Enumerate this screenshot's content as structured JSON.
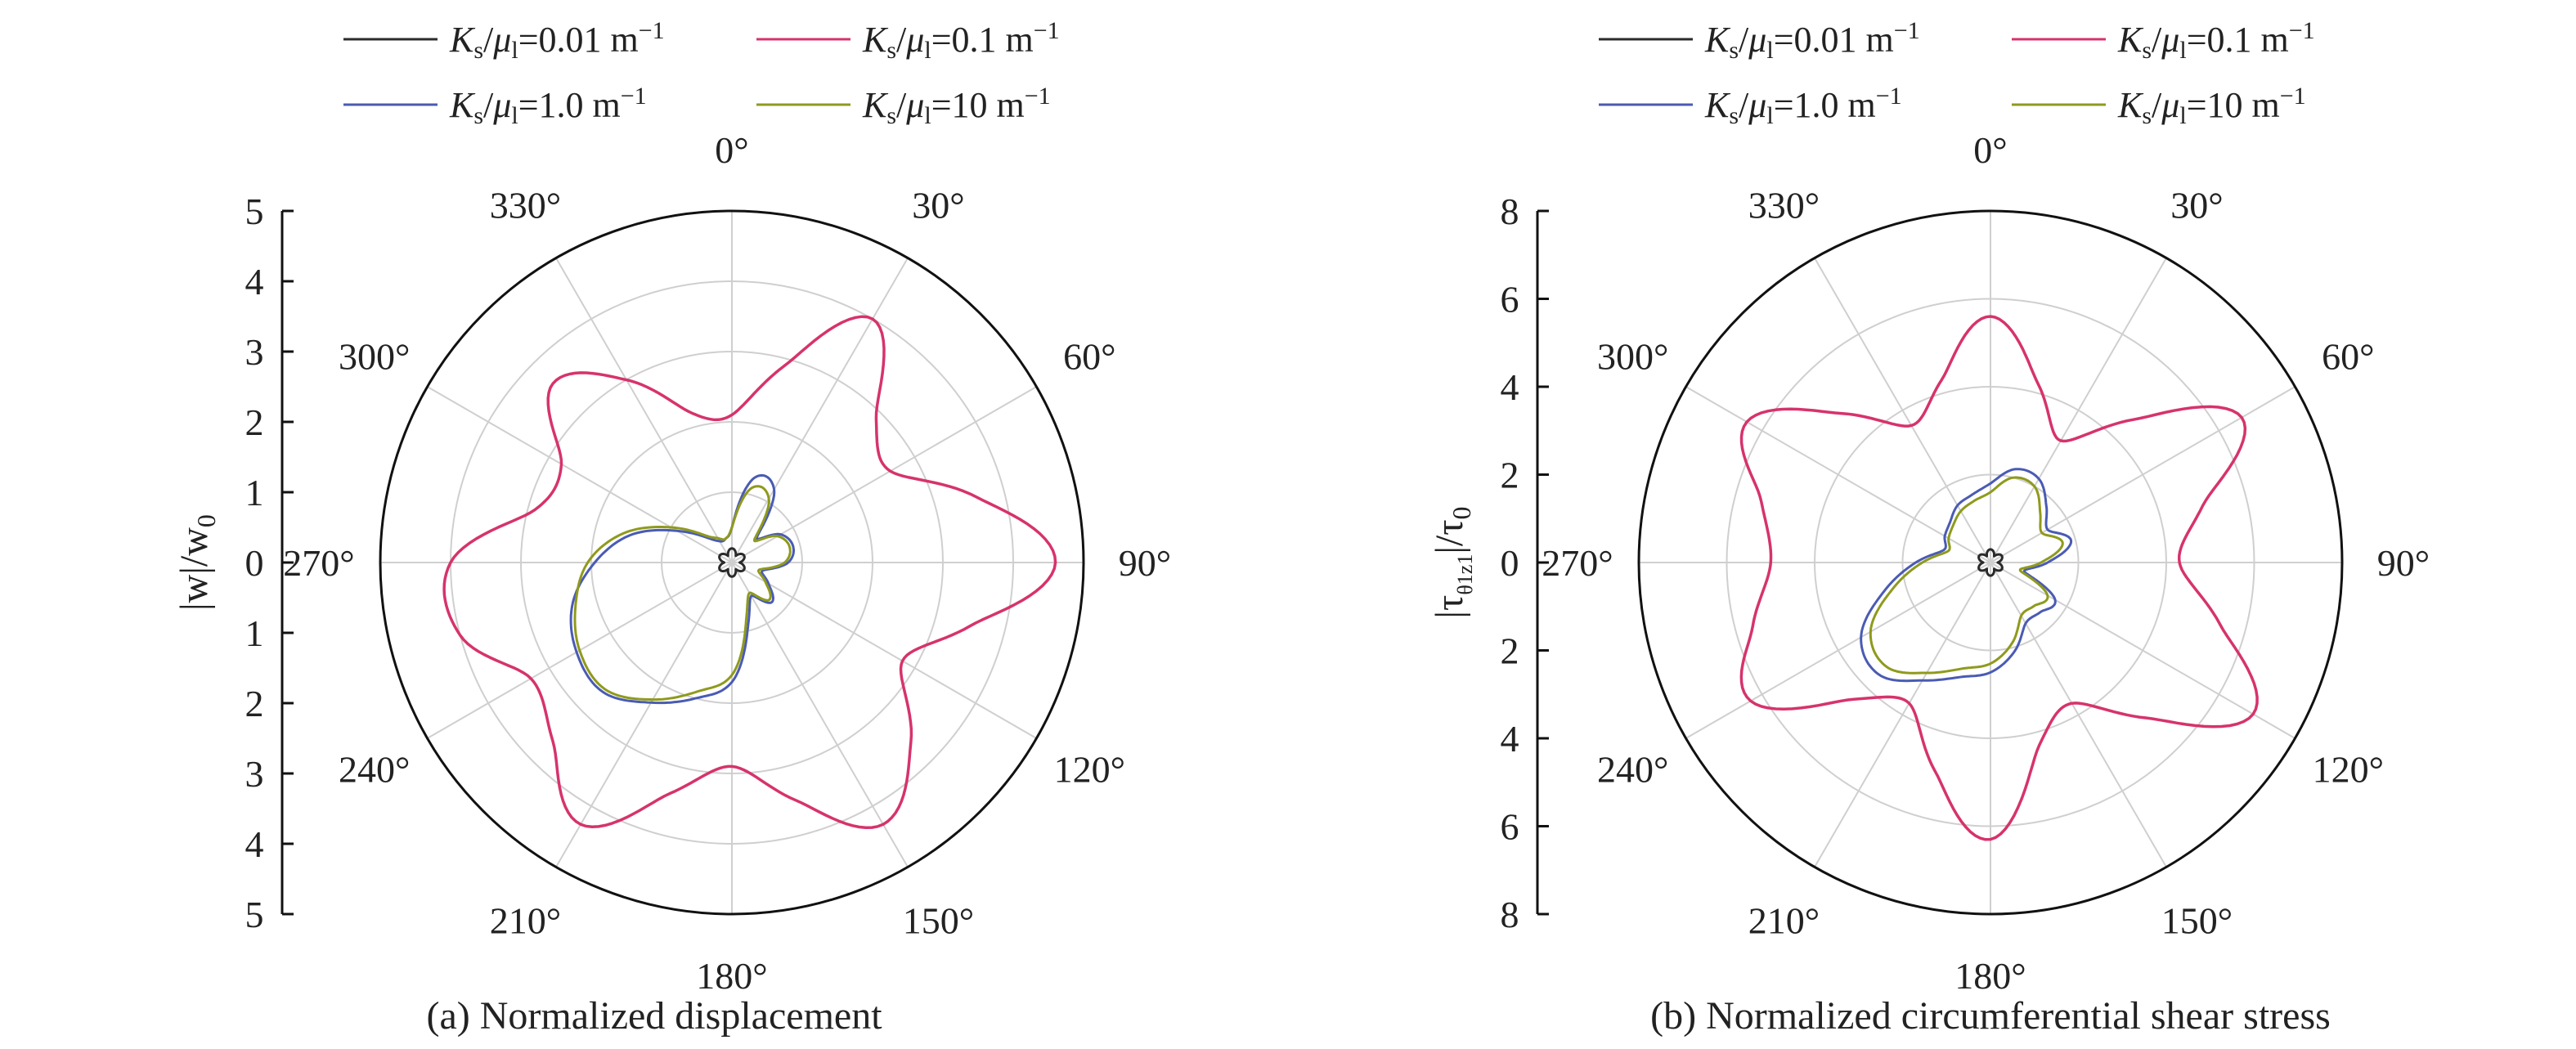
{
  "figure": {
    "legend": {
      "entries": [
        {
          "sym": "K",
          "sub1": "s",
          "mid": "/",
          "sym2": "μ",
          "sub2": "l",
          "eq": "=0.01 m",
          "sup": "−1",
          "color": "#2b2b2b"
        },
        {
          "sym": "K",
          "sub1": "s",
          "mid": "/",
          "sym2": "μ",
          "sub2": "l",
          "eq": "=0.1 m",
          "sup": "−1",
          "color": "#d6336c"
        },
        {
          "sym": "K",
          "sub1": "s",
          "mid": "/",
          "sym2": "μ",
          "sub2": "l",
          "eq": "=1.0 m",
          "sup": "−1",
          "color": "#4a5bb3"
        },
        {
          "sym": "K",
          "sub1": "s",
          "mid": "/",
          "sym2": "μ",
          "sub2": "l",
          "eq": "=10 m",
          "sup": "−1",
          "color": "#8f9a1c"
        }
      ]
    },
    "angle_labels": [
      "0°",
      "30°",
      "60°",
      "90°",
      "120°",
      "150°",
      "180°",
      "210°",
      "240°",
      "270°",
      "300°",
      "330°"
    ]
  },
  "chart_data": [
    {
      "type": "polar-line",
      "caption": "(a) Normalized displacement",
      "ylabel": "|w|/w",
      "ylabel_sub": "0",
      "rlim": [
        0,
        5
      ],
      "radial_ticks": [
        5,
        4,
        3,
        2,
        1,
        0,
        1,
        2,
        3,
        4,
        5
      ],
      "grid": true,
      "legend_position": "top",
      "series": [
        {
          "name": "Ks/μl=0.01 m−1",
          "color": "#2b2b2b",
          "n": 6,
          "theta": [
            0,
            30,
            60,
            90,
            120,
            150,
            180,
            210,
            240,
            270,
            300,
            330
          ],
          "r": [
            0.2,
            0.2,
            0.2,
            0.2,
            0.2,
            0.2,
            0.2,
            0.2,
            0.2,
            0.2,
            0.2,
            0.2
          ]
        },
        {
          "name": "Ks/μl=0.1 m−1",
          "color": "#d6336c",
          "theta": [
            0,
            15,
            30,
            45,
            60,
            75,
            90,
            105,
            120,
            135,
            150,
            165,
            180,
            195,
            210,
            225,
            240,
            255,
            270,
            285,
            300,
            315,
            330,
            345
          ],
          "r": [
            2.1,
            2.9,
            4.0,
            2.9,
            2.6,
            3.6,
            4.6,
            3.5,
            2.8,
            3.6,
            4.3,
            3.5,
            2.9,
            3.4,
            4.3,
            3.6,
            3.3,
            4.0,
            4.0,
            2.9,
            2.8,
            3.6,
            3.0,
            2.2
          ]
        },
        {
          "name": "Ks/μl=1.0 m−1",
          "color": "#4a5bb3",
          "theta": [
            0,
            15,
            30,
            45,
            60,
            75,
            90,
            105,
            120,
            135,
            150,
            165,
            180,
            195,
            210,
            225,
            240,
            255,
            270,
            285,
            300,
            315,
            330,
            345
          ],
          "r": [
            0.5,
            1.25,
            1.2,
            0.5,
            0.8,
            0.9,
            0.8,
            0.45,
            0.6,
            0.8,
            0.55,
            0.9,
            1.7,
            2.0,
            2.3,
            2.6,
            2.55,
            2.35,
            1.95,
            1.5,
            0.9,
            0.5,
            0.35,
            0.35
          ]
        },
        {
          "name": "Ks/μl=10 m−1",
          "color": "#8f9a1c",
          "theta": [
            0,
            15,
            30,
            45,
            60,
            75,
            90,
            105,
            120,
            135,
            150,
            165,
            180,
            195,
            210,
            225,
            240,
            255,
            270,
            285,
            300,
            315,
            330,
            345
          ],
          "r": [
            0.5,
            1.1,
            1.05,
            0.45,
            0.75,
            0.85,
            0.75,
            0.4,
            0.55,
            0.75,
            0.5,
            0.8,
            1.6,
            1.9,
            2.25,
            2.55,
            2.5,
            2.3,
            2.05,
            1.6,
            1.0,
            0.55,
            0.4,
            0.35
          ]
        }
      ]
    },
    {
      "type": "polar-line",
      "caption": "(b) Normalized circumferential shear stress",
      "ylabel": "|τ",
      "ylabel_sub": "θ1z1",
      "ylabel_tail": "|/τ",
      "ylabel_sub2": "0",
      "rlim": [
        0,
        8
      ],
      "radial_ticks": [
        8,
        6,
        4,
        2,
        0,
        2,
        4,
        6,
        8
      ],
      "grid": true,
      "legend_position": "top",
      "series": [
        {
          "name": "Ks/μl=0.01 m−1",
          "color": "#2b2b2b",
          "n": 6,
          "theta": [
            0,
            30,
            60,
            90,
            120,
            150,
            180,
            210,
            240,
            270,
            300,
            330
          ],
          "r": [
            0.3,
            0.3,
            0.3,
            0.3,
            0.3,
            0.3,
            0.3,
            0.3,
            0.3,
            0.3,
            0.3,
            0.3
          ]
        },
        {
          "name": "Ks/μl=0.1 m−1",
          "color": "#d6336c",
          "theta": [
            0,
            15,
            30,
            45,
            60,
            75,
            90,
            105,
            120,
            135,
            150,
            165,
            180,
            195,
            210,
            225,
            240,
            255,
            270,
            285,
            300,
            315,
            330,
            345
          ],
          "r": [
            5.6,
            4.2,
            3.2,
            4.6,
            6.6,
            5.0,
            4.3,
            5.4,
            6.9,
            5.0,
            3.7,
            4.3,
            6.3,
            4.9,
            3.7,
            4.4,
            6.3,
            5.6,
            5.0,
            5.4,
            6.4,
            4.8,
            3.6,
            4.3
          ]
        },
        {
          "name": "Ks/μl=1.0 m−1",
          "color": "#4a5bb3",
          "theta": [
            0,
            15,
            30,
            45,
            60,
            75,
            90,
            105,
            120,
            135,
            150,
            165,
            180,
            195,
            210,
            225,
            240,
            255,
            270,
            285,
            300,
            315,
            330,
            345
          ],
          "r": [
            1.8,
            2.2,
            2.2,
            1.8,
            1.5,
            1.9,
            1.3,
            0.8,
            1.7,
            1.6,
            1.6,
            2.1,
            2.5,
            2.7,
            3.1,
            3.6,
            3.4,
            2.5,
            1.7,
            1.1,
            1.2,
            1.3,
            1.5,
            1.6
          ]
        },
        {
          "name": "Ks/μl=10 m−1",
          "color": "#8f9a1c",
          "theta": [
            0,
            15,
            30,
            45,
            60,
            75,
            90,
            105,
            120,
            135,
            150,
            165,
            180,
            195,
            210,
            225,
            240,
            255,
            270,
            285,
            300,
            315,
            330,
            345
          ],
          "r": [
            1.6,
            2.0,
            2.0,
            1.6,
            1.35,
            1.7,
            1.15,
            0.7,
            1.5,
            1.4,
            1.4,
            1.9,
            2.3,
            2.5,
            2.9,
            3.35,
            3.15,
            2.3,
            1.55,
            1.0,
            1.1,
            1.2,
            1.35,
            1.45
          ]
        }
      ]
    }
  ]
}
